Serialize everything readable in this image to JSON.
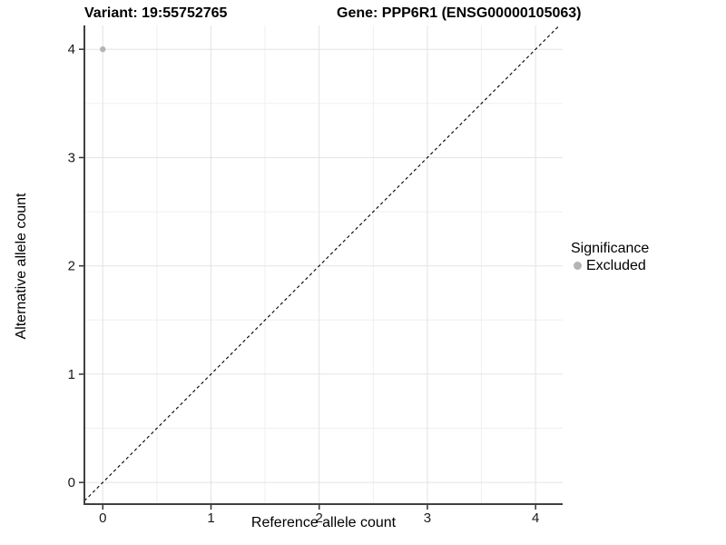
{
  "chart_data": {
    "type": "scatter",
    "titles": {
      "left": "Variant: 19:55752765",
      "right": "Gene: PPP6R1 (ENSG00000105063)"
    },
    "xlabel": "Reference allele count",
    "ylabel": "Alternative allele count",
    "xlim": [
      -0.17,
      4.25
    ],
    "ylim": [
      -0.2,
      4.22
    ],
    "x_ticks": [
      0,
      1,
      2,
      3,
      4
    ],
    "y_ticks": [
      0,
      1,
      2,
      3,
      4
    ],
    "minor_ticks": [
      0.5,
      1.5,
      2.5,
      3.5
    ],
    "grid": true,
    "points": [
      {
        "x": 0,
        "y": 4,
        "series": "Excluded"
      }
    ],
    "reference_line": {
      "type": "identity",
      "slope": 1,
      "intercept": 0,
      "style": "dashed",
      "color": "#000000"
    },
    "legend": {
      "title": "Significance",
      "position": "right",
      "items": [
        {
          "label": "Excluded",
          "color": "#b4b4b4"
        }
      ]
    },
    "colors": {
      "point": "#b4b4b4",
      "grid_major": "#e4e4e4",
      "grid_minor": "#efefef",
      "axis_line": "#404040",
      "tick_mark": "#333333",
      "tick_label": "#1a1a1a"
    }
  }
}
